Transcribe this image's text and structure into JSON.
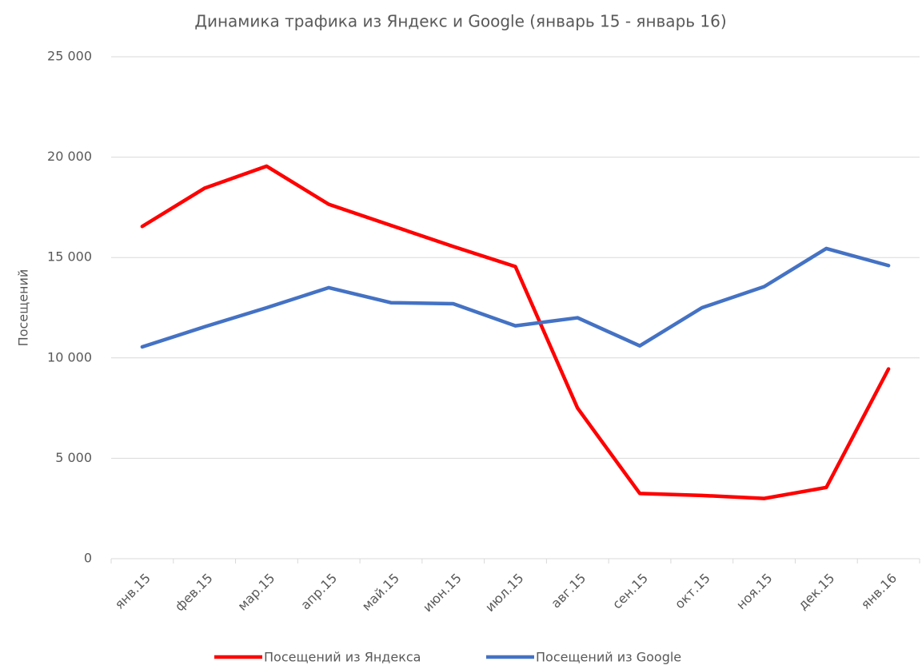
{
  "chart_data": {
    "type": "line",
    "title": "Динамика трафика из Яндекс и Google (январь 15 - январь 16)",
    "y_label": "Посещений",
    "categories": [
      "янв.15",
      "фев.15",
      "мар.15",
      "апр.15",
      "май.15",
      "июн.15",
      "июл.15",
      "авг.15",
      "сен.15",
      "окт.15",
      "ноя.15",
      "дек.15",
      "янв.16"
    ],
    "series": [
      {
        "name": "Посещений из Яндекса",
        "color": "#ff0000",
        "values": [
          16550,
          18450,
          19550,
          17650,
          16600,
          15550,
          14550,
          7500,
          3250,
          3150,
          3000,
          3550,
          9450
        ]
      },
      {
        "name": "Посещений из Google",
        "color": "#4472c4",
        "values": [
          10550,
          11550,
          12500,
          13500,
          12750,
          12700,
          11600,
          12000,
          10600,
          12500,
          13550,
          15450,
          14600
        ]
      }
    ],
    "ylim": [
      0,
      25000
    ],
    "yticks": [
      0,
      {
        "value": 5000,
        "label": "5 000"
      },
      {
        "value": 10000,
        "label": "10 000"
      },
      {
        "value": 15000,
        "label": "15 000"
      },
      {
        "value": 20000,
        "label": "20 000"
      },
      {
        "value": 25000,
        "label": "25 000"
      }
    ],
    "grid": true,
    "legend": "bottom"
  }
}
